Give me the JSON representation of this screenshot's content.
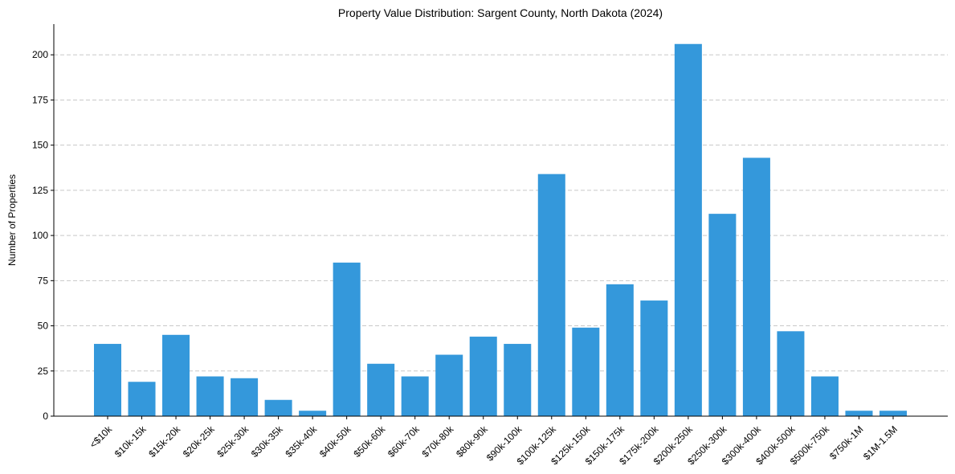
{
  "chart_data": {
    "type": "bar",
    "title": "Property Value Distribution: Sargent County, North Dakota (2024)",
    "xlabel": "",
    "ylabel": "Number of Properties",
    "ylim": [
      0,
      217
    ],
    "yticks": [
      0,
      25,
      50,
      75,
      100,
      125,
      150,
      175,
      200
    ],
    "grid": "y-dashed",
    "bar_color": "#3498db",
    "categories": [
      "<$10k",
      "$10k-15k",
      "$15k-20k",
      "$20k-25k",
      "$25k-30k",
      "$30k-35k",
      "$35k-40k",
      "$40k-50k",
      "$50k-60k",
      "$60k-70k",
      "$70k-80k",
      "$80k-90k",
      "$90k-100k",
      "$100k-125k",
      "$125k-150k",
      "$150k-175k",
      "$175k-200k",
      "$200k-250k",
      "$250k-300k",
      "$300k-400k",
      "$400k-500k",
      "$500k-750k",
      "$750k-1M",
      "$1M-1.5M"
    ],
    "values": [
      40,
      19,
      45,
      22,
      21,
      9,
      3,
      85,
      29,
      22,
      34,
      44,
      40,
      134,
      49,
      73,
      64,
      206,
      112,
      143,
      47,
      22,
      3,
      3
    ]
  }
}
